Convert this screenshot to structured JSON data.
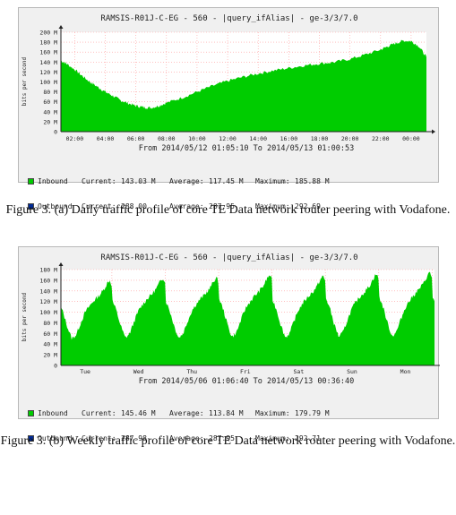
{
  "chart_data": [
    {
      "type": "area",
      "title": "RAMSIS-R01J-C-EG - 560 - |query_ifAlias| - ge-3/3/7.0",
      "ylabel": "bits per second",
      "ylim": [
        0,
        200
      ],
      "yticks": [
        "0",
        "20 M",
        "40 M",
        "60 M",
        "80 M",
        "100 M",
        "120 M",
        "140 M",
        "160 M",
        "180 M",
        "200 M"
      ],
      "xticks": [
        "02:00",
        "04:00",
        "06:00",
        "08:00",
        "10:00",
        "12:00",
        "14:00",
        "16:00",
        "18:00",
        "20:00",
        "22:00",
        "00:00"
      ],
      "period": "From 2014/05/12 01:05:10 To 2014/05/13 01:00:53",
      "x": [
        1.1,
        1.5,
        2,
        2.5,
        3,
        3.5,
        4,
        4.5,
        5,
        5.5,
        6,
        6.5,
        7,
        7.5,
        8,
        9,
        10,
        11,
        12,
        13,
        14,
        15,
        16,
        17,
        18,
        19,
        20,
        21,
        22,
        22.5,
        23,
        23.5,
        24,
        24.5,
        25
      ],
      "inbound": [
        143,
        136,
        125,
        112,
        100,
        90,
        80,
        72,
        63,
        57,
        52,
        49,
        48,
        52,
        58,
        68,
        80,
        92,
        102,
        110,
        117,
        123,
        128,
        133,
        137,
        140,
        146,
        155,
        165,
        172,
        178,
        183,
        182,
        172,
        150
      ],
      "series": [
        {
          "name": "Inbound",
          "current": "143.03 M",
          "average": "117.45 M",
          "maximum": "185.88 M",
          "color": "#00cc00"
        },
        {
          "name": "Outbound",
          "current": "288.00",
          "average": "287.95",
          "maximum": "292.69",
          "color": "#002a97"
        }
      ]
    },
    {
      "type": "area",
      "title": "RAMSIS-R01J-C-EG - 560 - |query_ifAlias| - ge-3/3/7.0",
      "ylabel": "bits per second",
      "ylim": [
        0,
        180
      ],
      "yticks": [
        "0",
        "20 M",
        "40 M",
        "60 M",
        "80 M",
        "100 M",
        "120 M",
        "140 M",
        "160 M",
        "180 M"
      ],
      "xticks": [
        "Tue",
        "Wed",
        "Thu",
        "Fri",
        "Sat",
        "Sun",
        "Mon"
      ],
      "period": "From 2014/05/06 01:06:40 To 2014/05/13 00:36:40",
      "day_peaks": [
        160,
        165,
        165,
        170,
        168,
        172,
        175
      ],
      "series": [
        {
          "name": "Inbound",
          "current": "145.46 M",
          "average": "113.84 M",
          "maximum": "179.79 M",
          "color": "#00cc00"
        },
        {
          "name": "Outbound",
          "current": "287.98",
          "average": "287.95",
          "maximum": "292.71",
          "color": "#002a97"
        }
      ]
    }
  ],
  "labels": {
    "current": "Current:",
    "average": "Average:",
    "maximum": "Maximum:"
  },
  "captions": [
    "Figure 3. (a) Daily traffic profile of core TE Data network router peering with Vodafone.",
    "Figure 3. (b) Weekly traffic profile of core TE Data network router peering with Vodafone."
  ]
}
